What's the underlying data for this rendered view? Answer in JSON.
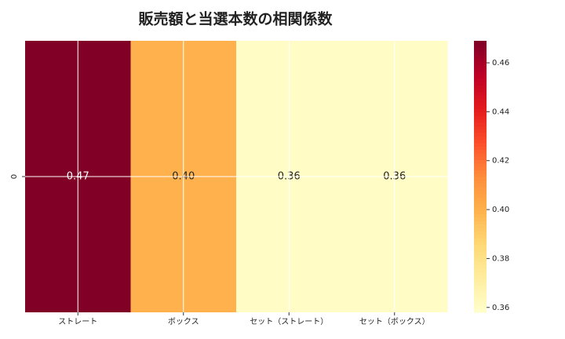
{
  "chart_data": {
    "type": "heatmap",
    "title": "販売額と当選本数の相関係数",
    "categories": [
      "ストレート",
      "ボックス",
      "セット（ストレート）",
      "セット（ボックス）"
    ],
    "rows": [
      "0"
    ],
    "values": [
      [
        0.47,
        0.4,
        0.36,
        0.36
      ]
    ],
    "value_labels": [
      [
        "0.47",
        "0.40",
        "0.36",
        "0.36"
      ]
    ],
    "clim": [
      0.358,
      0.469
    ],
    "cticks": [
      0.36,
      0.38,
      {
        "value": 0.4,
        "label": "0.40"
      },
      0.42,
      0.44,
      0.46
    ],
    "colormap": [
      "#ffffcc",
      "#ffeda0",
      "#fed976",
      "#feb24c",
      "#fd8d3c",
      "#fc4e2a",
      "#e31a1c",
      "#bd0026",
      "#800026"
    ],
    "grid": true
  }
}
